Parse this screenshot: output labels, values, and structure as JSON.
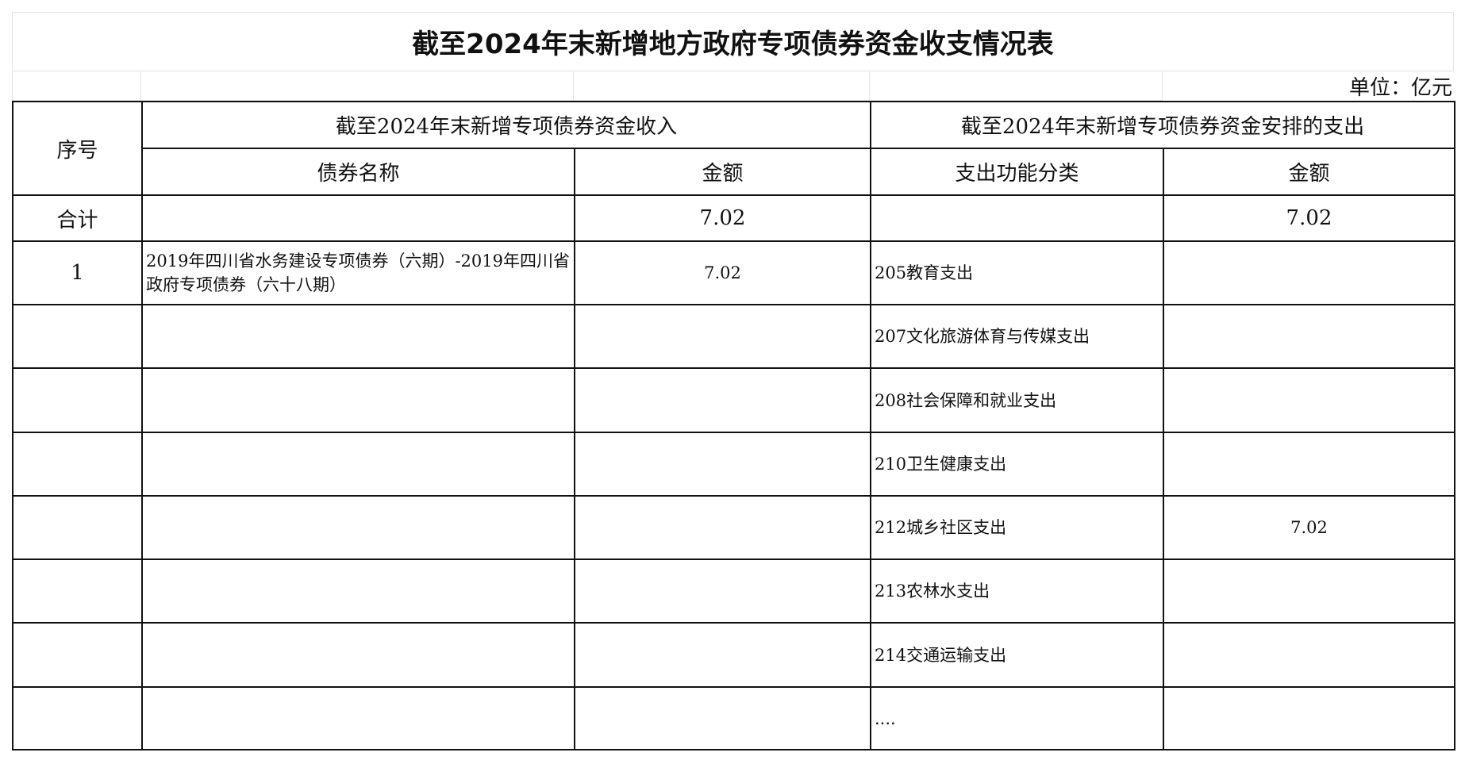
{
  "title": "截至2024年末新增地方政府专项债券资金收支情况表",
  "unit": "单位：亿元",
  "headers": {
    "seq": "序号",
    "income_group": "截至2024年末新增专项债券资金收入",
    "expense_group": "截至2024年末新增专项债券资金安排的支出",
    "bond_name": "债券名称",
    "income_amount": "金额",
    "expense_category": "支出功能分类",
    "expense_amount": "金额"
  },
  "total": {
    "label": "合计",
    "bond_name": "",
    "income_amount": "7.02",
    "expense_category": "",
    "expense_amount": "7.02"
  },
  "rows": [
    {
      "seq": "1",
      "bond_name": "2019年四川省水务建设专项债券（六期）-2019年四川省政府专项债券（六十八期）",
      "income_amount": "7.02",
      "expense_category": "205教育支出",
      "expense_amount": ""
    },
    {
      "seq": "",
      "bond_name": "",
      "income_amount": "",
      "expense_category": "207文化旅游体育与传媒支出",
      "expense_amount": ""
    },
    {
      "seq": "",
      "bond_name": "",
      "income_amount": "",
      "expense_category": "208社会保障和就业支出",
      "expense_amount": ""
    },
    {
      "seq": "",
      "bond_name": "",
      "income_amount": "",
      "expense_category": "210卫生健康支出",
      "expense_amount": ""
    },
    {
      "seq": "",
      "bond_name": "",
      "income_amount": "",
      "expense_category": "212城乡社区支出",
      "expense_amount": "7.02"
    },
    {
      "seq": "",
      "bond_name": "",
      "income_amount": "",
      "expense_category": "213农林水支出",
      "expense_amount": ""
    },
    {
      "seq": "",
      "bond_name": "",
      "income_amount": "",
      "expense_category": "214交通运输支出",
      "expense_amount": ""
    },
    {
      "seq": "",
      "bond_name": "",
      "income_amount": "",
      "expense_category": "....",
      "expense_amount": ""
    }
  ]
}
